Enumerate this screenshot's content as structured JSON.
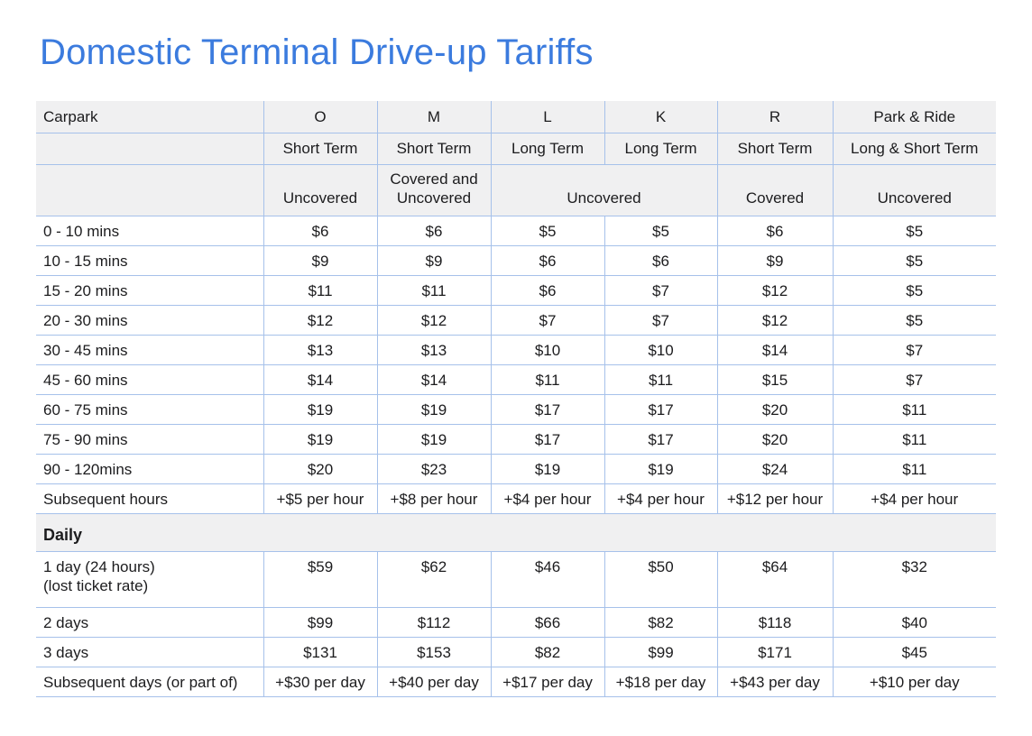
{
  "page": {
    "title": "Domestic Terminal Drive-up Tariffs"
  },
  "colors": {
    "accent": "#3b7bde",
    "table_border": "#a6c1ea",
    "header_bg": "#f0f0f1",
    "text": "#1c1c1e"
  },
  "table": {
    "corner_label": "Carpark",
    "columns": [
      {
        "carpark": "O",
        "term": "Short Term"
      },
      {
        "carpark": "M",
        "term": "Short Term"
      },
      {
        "carpark": "L",
        "term": "Long Term"
      },
      {
        "carpark": "K",
        "term": "Long Term"
      },
      {
        "carpark": "R",
        "term": "Short Term"
      },
      {
        "carpark": "Park & Ride",
        "term": "Long & Short Term"
      }
    ],
    "cover_cells": [
      {
        "label": "Uncovered",
        "span": "1"
      },
      {
        "label": "Covered and Uncovered",
        "span": "1"
      },
      {
        "label": "Uncovered",
        "span": "2"
      },
      {
        "label": "Covered",
        "span": "1"
      },
      {
        "label": "Uncovered",
        "span": "1"
      }
    ],
    "hourly_rows": [
      {
        "label": "0 - 10 mins",
        "values": [
          "$6",
          "$6",
          "$5",
          "$5",
          "$6",
          "$5"
        ]
      },
      {
        "label": "10 - 15 mins",
        "values": [
          "$9",
          "$9",
          "$6",
          "$6",
          "$9",
          "$5"
        ]
      },
      {
        "label": "15 - 20 mins",
        "values": [
          "$11",
          "$11",
          "$6",
          "$7",
          "$12",
          "$5"
        ]
      },
      {
        "label": "20 - 30 mins",
        "values": [
          "$12",
          "$12",
          "$7",
          "$7",
          "$12",
          "$5"
        ]
      },
      {
        "label": "30 - 45 mins",
        "values": [
          "$13",
          "$13",
          "$10",
          "$10",
          "$14",
          "$7"
        ]
      },
      {
        "label": "45 - 60 mins",
        "values": [
          "$14",
          "$14",
          "$11",
          "$11",
          "$15",
          "$7"
        ]
      },
      {
        "label": "60 - 75 mins",
        "values": [
          "$19",
          "$19",
          "$17",
          "$17",
          "$20",
          "$11"
        ]
      },
      {
        "label": "75 - 90 mins",
        "values": [
          "$19",
          "$19",
          "$17",
          "$17",
          "$20",
          "$11"
        ]
      },
      {
        "label": "90 - 120mins",
        "values": [
          "$20",
          "$23",
          "$19",
          "$19",
          "$24",
          "$11"
        ]
      },
      {
        "label": "Subsequent hours",
        "values": [
          "+$5 per hour",
          "+$8 per hour",
          "+$4 per hour",
          "+$4 per hour",
          "+$12 per hour",
          "+$4 per hour"
        ]
      }
    ],
    "daily_section_label": "Daily",
    "daily_rows": [
      {
        "label": "1 day (24 hours)\n(lost ticket rate)",
        "tall": true,
        "values": [
          "$59",
          "$62",
          "$46",
          "$50",
          "$64",
          "$32"
        ]
      },
      {
        "label": "2 days",
        "values": [
          "$99",
          "$112",
          "$66",
          "$82",
          "$118",
          "$40"
        ]
      },
      {
        "label": "3 days",
        "values": [
          "$131",
          "$153",
          "$82",
          "$99",
          "$171",
          "$45"
        ]
      },
      {
        "label": "Subsequent days (or part of)",
        "values": [
          "+$30 per day",
          "+$40 per day",
          "+$17 per day",
          "+$18 per day",
          "+$43 per day",
          "+$10 per day"
        ]
      }
    ]
  }
}
